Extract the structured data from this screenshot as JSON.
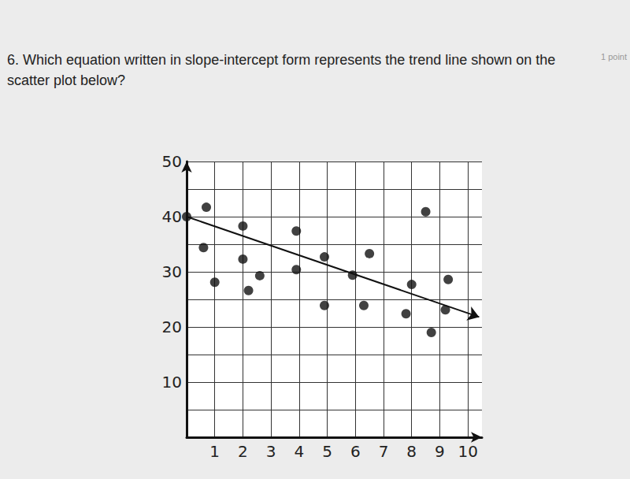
{
  "chart_data": {
    "type": "scatter",
    "title": "6. Which equation written in slope-intercept form represents the trend line shown on the scatter plot below?",
    "annotations": [
      "1 point"
    ],
    "x": [
      0,
      0.7,
      0.6,
      1,
      2,
      2,
      2.2,
      2.6,
      3.9,
      3.9,
      4.9,
      4.9,
      5.9,
      6.3,
      6.5,
      8,
      7.8,
      8.5,
      8.7,
      9.3,
      9.2
    ],
    "values": [
      40,
      41.7,
      34.4,
      28.1,
      38.3,
      32.3,
      26.6,
      29.3,
      37.4,
      30.4,
      32.7,
      23.9,
      29.4,
      23.9,
      33.3,
      27.7,
      22.4,
      40.9,
      19,
      28.6,
      23.1
    ],
    "color": "#111111",
    "trend_line": {
      "x": [
        0,
        10.4
      ],
      "y": [
        40,
        21.8
      ]
    },
    "xlim": [
      0,
      10.5
    ],
    "ylim": [
      0,
      50
    ],
    "xticks": [
      1,
      2,
      3,
      4,
      5,
      6,
      7,
      8,
      9,
      10
    ],
    "yticks": [
      10,
      20,
      30,
      40,
      50
    ],
    "grid": true
  }
}
